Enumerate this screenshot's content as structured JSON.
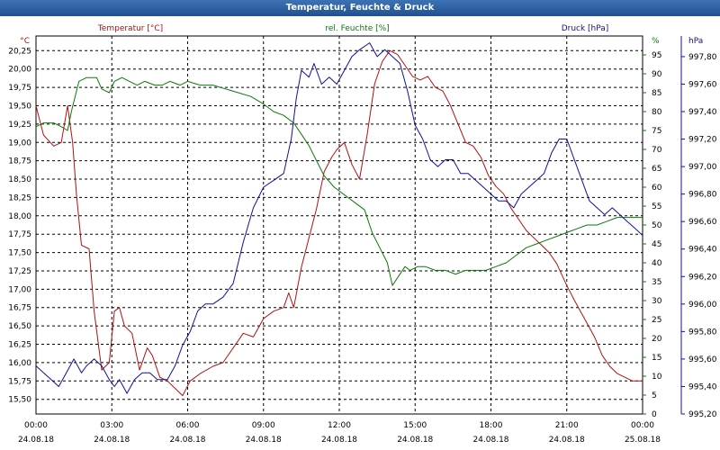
{
  "chart_data": {
    "type": "line",
    "title": "Temperatur, Feuchte & Druck",
    "x_ticks": [
      {
        "time": "00:00",
        "date": "24.08.18"
      },
      {
        "time": "03:00",
        "date": "24.08.18"
      },
      {
        "time": "06:00",
        "date": "24.08.18"
      },
      {
        "time": "09:00",
        "date": "24.08.18"
      },
      {
        "time": "12:00",
        "date": "24.08.18"
      },
      {
        "time": "15:00",
        "date": "24.08.18"
      },
      {
        "time": "18:00",
        "date": "24.08.18"
      },
      {
        "time": "21:00",
        "date": "24.08.18"
      },
      {
        "time": "00:00",
        "date": "25.08.18"
      }
    ],
    "x_range_hours": [
      0,
      24
    ],
    "axes": {
      "temperature": {
        "label": "Temperatur [°C]",
        "unit": "°C",
        "color": "#b01010",
        "range": [
          15.3,
          20.45
        ],
        "ticks": [
          "15,50",
          "15,75",
          "16,00",
          "16,25",
          "16,50",
          "16,75",
          "17,00",
          "17,25",
          "17,50",
          "17,75",
          "18,00",
          "18,25",
          "18,50",
          "18,75",
          "19,00",
          "19,25",
          "19,50",
          "19,75",
          "20,00",
          "20,25"
        ]
      },
      "humidity": {
        "label": "rel. Feuchte [%]",
        "unit": "%",
        "color": "#0a7a0a",
        "range": [
          0,
          100
        ],
        "ticks": [
          "0",
          "5",
          "10",
          "15",
          "20",
          "25",
          "30",
          "35",
          "40",
          "45",
          "50",
          "55",
          "60",
          "65",
          "70",
          "75",
          "80",
          "85",
          "90",
          "95"
        ]
      },
      "pressure": {
        "label": "Druck [hPa]",
        "unit": "hPa",
        "color": "#10109a",
        "range": [
          995.2,
          997.95
        ],
        "ticks": [
          "995,20",
          "995,40",
          "995,60",
          "995,80",
          "996,00",
          "996,20",
          "996,40",
          "996,60",
          "996,80",
          "997,00",
          "997,20",
          "997,40",
          "997,60",
          "997,80"
        ]
      }
    },
    "series": [
      {
        "name": "Temperatur",
        "axis": "temperature",
        "points": [
          [
            0,
            19.5
          ],
          [
            0.3,
            19.1
          ],
          [
            0.7,
            18.95
          ],
          [
            1.0,
            19.0
          ],
          [
            1.25,
            19.5
          ],
          [
            1.45,
            19.0
          ],
          [
            1.6,
            18.3
          ],
          [
            1.8,
            17.6
          ],
          [
            2.1,
            17.55
          ],
          [
            2.3,
            16.7
          ],
          [
            2.6,
            15.9
          ],
          [
            2.9,
            16.0
          ],
          [
            3.1,
            16.7
          ],
          [
            3.3,
            16.75
          ],
          [
            3.5,
            16.5
          ],
          [
            3.8,
            16.4
          ],
          [
            4.1,
            15.9
          ],
          [
            4.4,
            16.2
          ],
          [
            4.6,
            16.1
          ],
          [
            4.9,
            15.8
          ],
          [
            5.2,
            15.75
          ],
          [
            5.5,
            15.65
          ],
          [
            5.8,
            15.55
          ],
          [
            6.1,
            15.75
          ],
          [
            6.5,
            15.85
          ],
          [
            7.0,
            15.95
          ],
          [
            7.4,
            16.0
          ],
          [
            7.8,
            16.2
          ],
          [
            8.2,
            16.4
          ],
          [
            8.6,
            16.35
          ],
          [
            9.0,
            16.6
          ],
          [
            9.4,
            16.7
          ],
          [
            9.8,
            16.75
          ],
          [
            10.0,
            16.95
          ],
          [
            10.2,
            16.75
          ],
          [
            10.5,
            17.3
          ],
          [
            10.8,
            17.7
          ],
          [
            11.1,
            18.1
          ],
          [
            11.4,
            18.6
          ],
          [
            11.7,
            18.8
          ],
          [
            11.9,
            18.9
          ],
          [
            12.2,
            19.0
          ],
          [
            12.5,
            18.7
          ],
          [
            12.8,
            18.5
          ],
          [
            13.1,
            19.1
          ],
          [
            13.4,
            19.8
          ],
          [
            13.7,
            20.1
          ],
          [
            14.0,
            20.25
          ],
          [
            14.3,
            20.2
          ],
          [
            14.6,
            20.05
          ],
          [
            14.9,
            19.9
          ],
          [
            15.2,
            19.85
          ],
          [
            15.5,
            19.9
          ],
          [
            15.8,
            19.75
          ],
          [
            16.1,
            19.7
          ],
          [
            16.4,
            19.5
          ],
          [
            16.7,
            19.25
          ],
          [
            17.0,
            19.0
          ],
          [
            17.3,
            18.95
          ],
          [
            17.6,
            18.8
          ],
          [
            17.9,
            18.55
          ],
          [
            18.2,
            18.4
          ],
          [
            18.5,
            18.3
          ],
          [
            18.8,
            18.1
          ],
          [
            19.1,
            17.95
          ],
          [
            19.4,
            17.8
          ],
          [
            19.7,
            17.7
          ],
          [
            20.0,
            17.6
          ],
          [
            20.3,
            17.5
          ],
          [
            20.6,
            17.35
          ],
          [
            21.0,
            17.05
          ],
          [
            21.3,
            16.85
          ],
          [
            21.7,
            16.6
          ],
          [
            22.1,
            16.35
          ],
          [
            22.4,
            16.1
          ],
          [
            22.7,
            15.95
          ],
          [
            23.0,
            15.85
          ],
          [
            23.3,
            15.8
          ],
          [
            23.6,
            15.75
          ],
          [
            24.0,
            15.75
          ]
        ]
      },
      {
        "name": "rel. Feuchte",
        "axis": "humidity",
        "points": [
          [
            0,
            76
          ],
          [
            0.3,
            77
          ],
          [
            0.7,
            77
          ],
          [
            1.0,
            76
          ],
          [
            1.25,
            75
          ],
          [
            1.4,
            80
          ],
          [
            1.7,
            88
          ],
          [
            2.0,
            89
          ],
          [
            2.4,
            89
          ],
          [
            2.6,
            86
          ],
          [
            2.9,
            85
          ],
          [
            3.1,
            88
          ],
          [
            3.4,
            89
          ],
          [
            3.7,
            88
          ],
          [
            4.0,
            87
          ],
          [
            4.3,
            88
          ],
          [
            4.7,
            87
          ],
          [
            5.0,
            87
          ],
          [
            5.3,
            88
          ],
          [
            5.7,
            87
          ],
          [
            6.0,
            88
          ],
          [
            6.5,
            87
          ],
          [
            7.0,
            87
          ],
          [
            7.5,
            86
          ],
          [
            8.0,
            85
          ],
          [
            8.5,
            84
          ],
          [
            9.0,
            82
          ],
          [
            9.4,
            80
          ],
          [
            9.8,
            79
          ],
          [
            10.2,
            77
          ],
          [
            10.5,
            74
          ],
          [
            10.8,
            71
          ],
          [
            11.1,
            67
          ],
          [
            11.4,
            63
          ],
          [
            11.8,
            60
          ],
          [
            12.2,
            58
          ],
          [
            12.6,
            56
          ],
          [
            13.0,
            54
          ],
          [
            13.3,
            48
          ],
          [
            13.6,
            44
          ],
          [
            13.9,
            40
          ],
          [
            14.1,
            34
          ],
          [
            14.3,
            36
          ],
          [
            14.6,
            39
          ],
          [
            14.8,
            38
          ],
          [
            15.1,
            39
          ],
          [
            15.4,
            39
          ],
          [
            15.8,
            38
          ],
          [
            16.2,
            38
          ],
          [
            16.6,
            37
          ],
          [
            17.0,
            38
          ],
          [
            17.4,
            38
          ],
          [
            17.8,
            38
          ],
          [
            18.2,
            39
          ],
          [
            18.6,
            40
          ],
          [
            19.0,
            42
          ],
          [
            19.4,
            44
          ],
          [
            19.8,
            45
          ],
          [
            20.2,
            46
          ],
          [
            20.6,
            47
          ],
          [
            21.0,
            48
          ],
          [
            21.4,
            49
          ],
          [
            21.8,
            50
          ],
          [
            22.2,
            50
          ],
          [
            22.6,
            51
          ],
          [
            23.0,
            52
          ],
          [
            23.4,
            52
          ],
          [
            23.8,
            52
          ],
          [
            24.0,
            52
          ]
        ]
      },
      {
        "name": "Druck",
        "axis": "pressure",
        "points": [
          [
            0,
            995.55
          ],
          [
            0.3,
            995.5
          ],
          [
            0.6,
            995.45
          ],
          [
            0.9,
            995.4
          ],
          [
            1.2,
            995.5
          ],
          [
            1.5,
            995.6
          ],
          [
            1.8,
            995.5
          ],
          [
            2.0,
            995.55
          ],
          [
            2.3,
            995.6
          ],
          [
            2.6,
            995.55
          ],
          [
            2.9,
            995.45
          ],
          [
            3.1,
            995.4
          ],
          [
            3.3,
            995.45
          ],
          [
            3.6,
            995.35
          ],
          [
            3.9,
            995.45
          ],
          [
            4.2,
            995.5
          ],
          [
            4.5,
            995.5
          ],
          [
            4.8,
            995.45
          ],
          [
            5.2,
            995.45
          ],
          [
            5.5,
            995.55
          ],
          [
            5.8,
            995.7
          ],
          [
            6.1,
            995.8
          ],
          [
            6.4,
            995.95
          ],
          [
            6.7,
            996.0
          ],
          [
            7.0,
            996.0
          ],
          [
            7.4,
            996.05
          ],
          [
            7.8,
            996.15
          ],
          [
            8.2,
            996.45
          ],
          [
            8.6,
            996.7
          ],
          [
            9.0,
            996.85
          ],
          [
            9.4,
            996.9
          ],
          [
            9.8,
            996.95
          ],
          [
            10.1,
            997.2
          ],
          [
            10.3,
            997.5
          ],
          [
            10.5,
            997.7
          ],
          [
            10.8,
            997.65
          ],
          [
            11.0,
            997.75
          ],
          [
            11.3,
            997.6
          ],
          [
            11.6,
            997.65
          ],
          [
            11.9,
            997.6
          ],
          [
            12.2,
            997.7
          ],
          [
            12.5,
            997.8
          ],
          [
            12.8,
            997.85
          ],
          [
            13.2,
            997.9
          ],
          [
            13.5,
            997.8
          ],
          [
            13.8,
            997.85
          ],
          [
            14.1,
            997.8
          ],
          [
            14.4,
            997.75
          ],
          [
            14.7,
            997.55
          ],
          [
            15.0,
            997.3
          ],
          [
            15.3,
            997.2
          ],
          [
            15.6,
            997.05
          ],
          [
            15.9,
            997.0
          ],
          [
            16.2,
            997.05
          ],
          [
            16.5,
            997.05
          ],
          [
            16.8,
            996.95
          ],
          [
            17.1,
            996.95
          ],
          [
            17.4,
            996.9
          ],
          [
            17.7,
            996.85
          ],
          [
            18.0,
            996.8
          ],
          [
            18.3,
            996.75
          ],
          [
            18.6,
            996.75
          ],
          [
            18.9,
            996.7
          ],
          [
            19.2,
            996.8
          ],
          [
            19.5,
            996.85
          ],
          [
            19.8,
            996.9
          ],
          [
            20.1,
            996.95
          ],
          [
            20.4,
            997.1
          ],
          [
            20.7,
            997.2
          ],
          [
            21.0,
            997.2
          ],
          [
            21.3,
            997.05
          ],
          [
            21.6,
            996.9
          ],
          [
            21.9,
            996.75
          ],
          [
            22.2,
            996.7
          ],
          [
            22.5,
            996.65
          ],
          [
            22.8,
            996.7
          ],
          [
            23.1,
            996.65
          ],
          [
            23.4,
            996.6
          ],
          [
            23.7,
            996.55
          ],
          [
            24.0,
            996.5
          ]
        ]
      }
    ]
  }
}
